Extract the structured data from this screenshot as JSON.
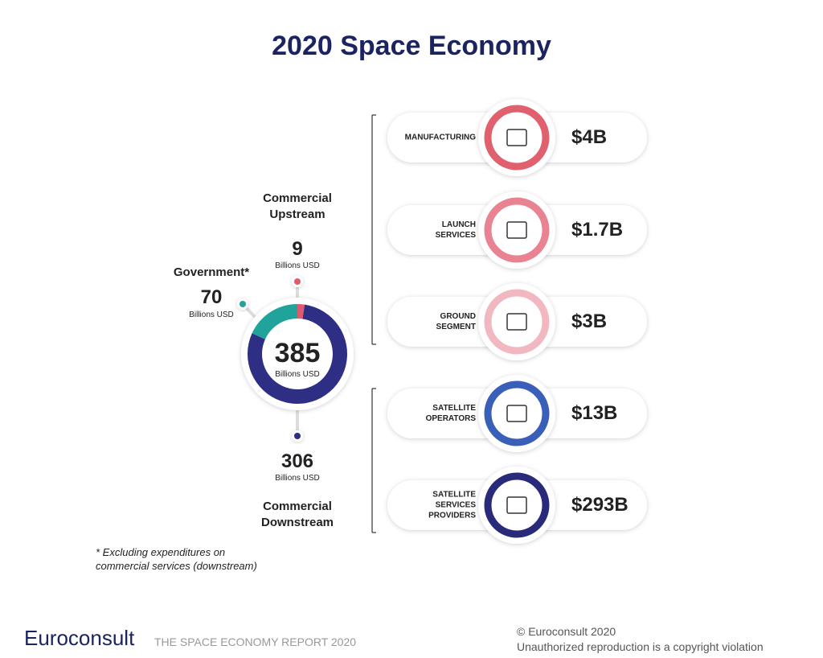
{
  "title": "2020 Space Economy",
  "chart_data": {
    "type": "pie",
    "donut": true,
    "categories": [
      "Commercial Upstream",
      "Commercial Downstream",
      "Government*"
    ],
    "values": [
      9,
      306,
      70
    ],
    "colors": [
      "#e05a6e",
      "#2e2e84",
      "#1fa39a"
    ],
    "total": 385,
    "unit": "Billions USD"
  },
  "segments": [
    {
      "label": [
        "MANUFACTURING"
      ],
      "value": "$4B",
      "color": "#e0606e"
    },
    {
      "label": [
        "LAUNCH",
        "SERVICES"
      ],
      "value": "$1.7B",
      "color": "#e98391"
    },
    {
      "label": [
        "GROUND",
        "SEGMENT"
      ],
      "value": "$3B",
      "color": "#f2b8c1"
    },
    {
      "label": [
        "SATELLITE",
        "OPERATORS"
      ],
      "value": "$13B",
      "color": "#3a5fb8"
    },
    {
      "label": [
        "SATELLITE",
        "SERVICES",
        "PROVIDERS"
      ],
      "value": "$293B",
      "color": "#2a2a7a"
    }
  ],
  "footnote": [
    "* Excluding expenditures on",
    "commercial services (downstream)"
  ],
  "footer": {
    "logo": "Euroconsult",
    "report": "THE SPACE ECONOMY REPORT 2020",
    "copyright": [
      "© Euroconsult 2020",
      "Unauthorized reproduction is a copyright violation"
    ]
  }
}
